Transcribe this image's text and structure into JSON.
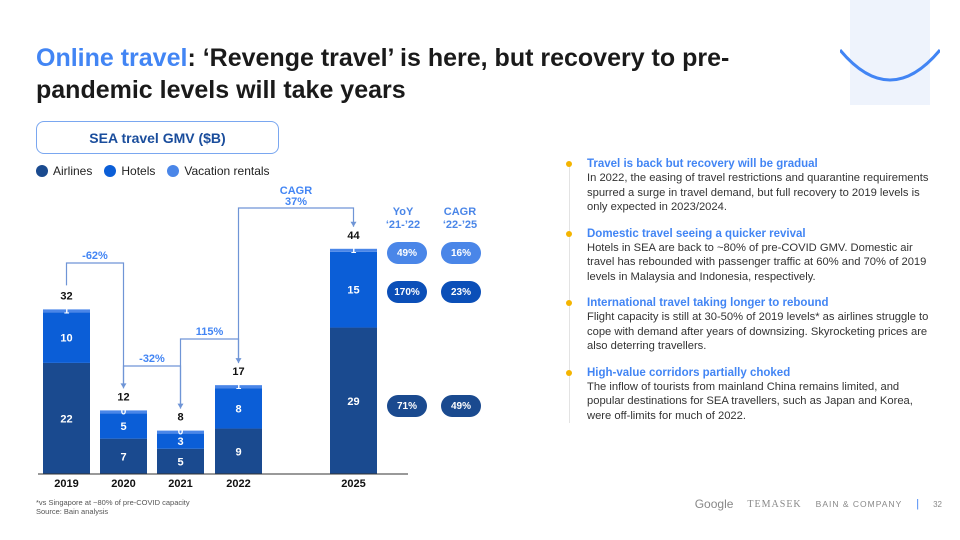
{
  "title": {
    "highlight": "Online travel",
    "rest": ": ‘Revenge travel’ is here, but recovery to pre-pandemic levels will take years"
  },
  "chart_box_title": "SEA travel GMV ($B)",
  "legend": [
    "Airlines",
    "Hotels",
    "Vacation rentals"
  ],
  "colors": {
    "airlines": "#1a4a8f",
    "hotels": "#0b5ed7",
    "rentals": "#4a86e8",
    "accent": "#4285f4",
    "arrow": "#6f95d6"
  },
  "chart_data": {
    "type": "bar",
    "stacked": true,
    "title": "SEA travel GMV ($B)",
    "categories": [
      "2019",
      "2020",
      "2021",
      "2022",
      "2025"
    ],
    "series": [
      {
        "name": "Airlines",
        "values": [
          22,
          7,
          5,
          9,
          29
        ]
      },
      {
        "name": "Hotels",
        "values": [
          10,
          5,
          3,
          8,
          15
        ]
      },
      {
        "name": "Vacation rentals",
        "values": [
          1,
          0,
          0,
          1,
          1
        ]
      }
    ],
    "totals": [
      "32",
      "12",
      "8",
      "17",
      "44"
    ],
    "annotations": [
      {
        "from": "2019",
        "to": "2020",
        "label": "-62%"
      },
      {
        "from": "2020",
        "to": "2021",
        "label": "-32%"
      },
      {
        "from": "2021",
        "to": "2022",
        "label": "115%"
      },
      {
        "from": "2022",
        "to": "2025",
        "label": "CAGR 37%"
      }
    ]
  },
  "growth": {
    "yoy_header": [
      "YoY",
      "‘21-’22"
    ],
    "cagr_header": [
      "CAGR",
      "‘22-’25"
    ],
    "rows": [
      {
        "series": "Vacation rentals",
        "yoy": "49%",
        "cagr": "16%"
      },
      {
        "series": "Hotels",
        "yoy": "170%",
        "cagr": "23%"
      },
      {
        "series": "Airlines",
        "yoy": "71%",
        "cagr": "49%"
      }
    ]
  },
  "sections": [
    {
      "heading": "Travel is back but recovery will be gradual",
      "body": "In 2022, the easing of travel restrictions and quarantine requirements spurred a surge in travel demand, but full recovery to 2019 levels is only expected in 2023/2024."
    },
    {
      "heading": "Domestic travel seeing a quicker revival",
      "body": "Hotels in SEA are back to ~80% of pre-COVID GMV. Domestic air travel has rebounded with passenger traffic at 60% and 70% of 2019 levels in Malaysia and Indonesia, respectively."
    },
    {
      "heading": "International travel taking longer to rebound",
      "body": "Flight capacity is still at 30-50% of 2019 levels* as airlines struggle to cope with demand after years of downsizing. Skyrocketing prices are also deterring travellers."
    },
    {
      "heading": "High-value corridors partially choked",
      "body": "The inflow of tourists from mainland China remains limited, and popular destinations for SEA travellers, such as Japan and Korea, were off-limits for much of 2022."
    }
  ],
  "notes": [
    "*vs Singapore at ~80% of pre-COVID capacity",
    "Source: Bain analysis"
  ],
  "footer": {
    "logos": [
      "Google",
      "TEMASEK",
      "BAIN & COMPANY"
    ],
    "page": "32"
  }
}
